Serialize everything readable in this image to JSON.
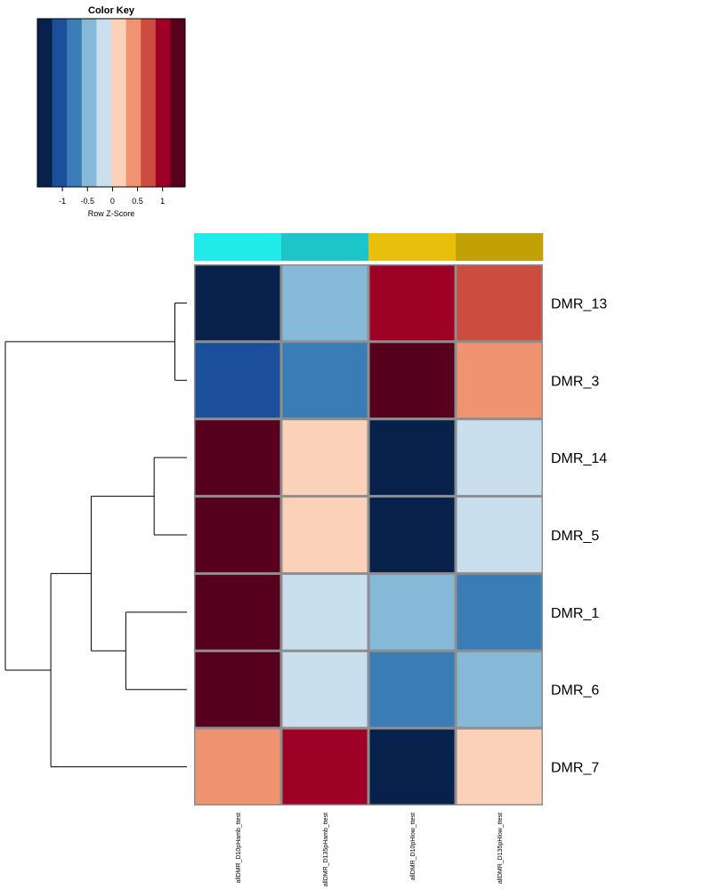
{
  "chart_data": {
    "type": "heatmap",
    "color_key": {
      "title": "Color Key",
      "xlabel": "Row Z-Score",
      "range": [
        -1.5,
        1.45
      ],
      "breaks": 10,
      "colors": [
        "#08214A",
        "#1B4F9C",
        "#3A7DB6",
        "#86B8D8",
        "#C9DFEE",
        "#FBD1B9",
        "#EF9370",
        "#CC4C40",
        "#9E0026",
        "#57001E"
      ],
      "ticks": [
        -1,
        -0.5,
        0,
        0.5,
        1
      ],
      "tick_labels": [
        "-1",
        "-0.5",
        "0",
        "0.5",
        "1"
      ]
    },
    "columns": [
      "allDMR_D10pHamb_ttest",
      "allDMR_D135pHamb_ttest",
      "allDMR_D10pHlow_ttest",
      "allDMR_D135pHlow_ttest"
    ],
    "column_colors": [
      "#20EAEA",
      "#1DC5C8",
      "#E8C00B",
      "#C2A106"
    ],
    "rows": [
      "DMR_13",
      "DMR_3",
      "DMR_14",
      "DMR_5",
      "DMR_1",
      "DMR_6",
      "DMR_7"
    ],
    "values": [
      [
        -1.35,
        -0.45,
        1.15,
        0.85
      ],
      [
        -1.05,
        -0.75,
        1.35,
        0.55
      ],
      [
        1.35,
        0.15,
        -1.35,
        -0.15
      ],
      [
        1.35,
        0.15,
        -1.35,
        -0.15
      ],
      [
        1.35,
        -0.15,
        -0.45,
        -0.75
      ],
      [
        1.35,
        -0.15,
        -0.75,
        -0.45
      ],
      [
        0.55,
        1.15,
        -1.35,
        0.15
      ]
    ],
    "row_dendrogram": [
      [
        0,
        1
      ],
      [
        2,
        3
      ],
      [
        4,
        5
      ],
      [
        8,
        9
      ],
      [
        10,
        6
      ],
      [
        7,
        11
      ]
    ]
  }
}
